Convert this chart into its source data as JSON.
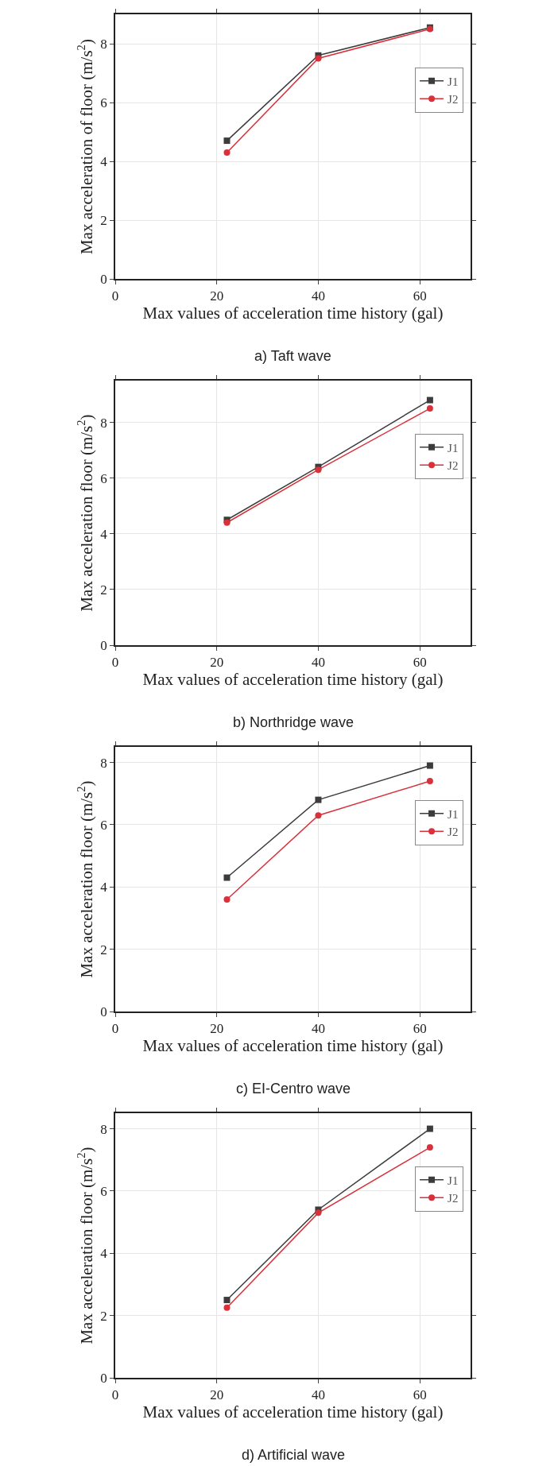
{
  "chart_data": [
    {
      "type": "line",
      "xlabel": "Max values of acceleration time history (gal)",
      "ylabel": "Max acceleration of floor (m/s$^{2}$)",
      "annotations": [
        "a) Taft wave"
      ],
      "x": [
        22,
        40,
        62
      ],
      "xlim": [
        0,
        70
      ],
      "xticks": [
        0,
        20,
        40,
        60
      ],
      "ylim": [
        0,
        9
      ],
      "yticks": [
        0,
        2,
        4,
        6,
        8
      ],
      "grid": true,
      "legend": "top right",
      "line_style": "solid",
      "series": [
        {
          "name": "J1",
          "color": "#3c3c3c",
          "marker": "square",
          "values": [
            4.7,
            7.6,
            8.55
          ]
        },
        {
          "name": "J2",
          "color": "#d9303a",
          "marker": "circle",
          "values": [
            4.3,
            7.5,
            8.5
          ]
        }
      ]
    },
    {
      "type": "line",
      "xlabel": "Max values of acceleration time history (gal)",
      "ylabel": "Max acceleration floor (m/s$^{2}$)",
      "annotations": [
        "b) Northridge wave"
      ],
      "x": [
        22,
        40,
        62
      ],
      "xlim": [
        0,
        70
      ],
      "xticks": [
        0,
        20,
        40,
        60
      ],
      "ylim": [
        0,
        9.5
      ],
      "yticks": [
        0,
        2,
        4,
        6,
        8
      ],
      "grid": true,
      "legend": "top right",
      "line_style": "solid",
      "series": [
        {
          "name": "J1",
          "color": "#3c3c3c",
          "marker": "square",
          "values": [
            4.5,
            6.4,
            8.8
          ]
        },
        {
          "name": "J2",
          "color": "#d9303a",
          "marker": "circle",
          "values": [
            4.4,
            6.3,
            8.5
          ]
        }
      ]
    },
    {
      "type": "line",
      "xlabel": "Max values of acceleration time history (gal)",
      "ylabel": "Max acceleration floor (m/s$^{2}$)",
      "annotations": [
        "c) EI-Centro wave"
      ],
      "x": [
        22,
        40,
        62
      ],
      "xlim": [
        0,
        70
      ],
      "xticks": [
        0,
        20,
        40,
        60
      ],
      "ylim": [
        0,
        8.5
      ],
      "yticks": [
        0,
        2,
        4,
        6,
        8
      ],
      "grid": true,
      "legend": "top right",
      "line_style": "solid",
      "series": [
        {
          "name": "J1",
          "color": "#3c3c3c",
          "marker": "square",
          "values": [
            4.3,
            6.8,
            7.9
          ]
        },
        {
          "name": "J2",
          "color": "#d9303a",
          "marker": "circle",
          "values": [
            3.6,
            6.3,
            7.4
          ]
        }
      ]
    },
    {
      "type": "line",
      "xlabel": "Max values of acceleration time history (gal)",
      "ylabel": "Max acceleration floor (m/s$^{2}$)",
      "annotations": [
        "d) Artificial wave"
      ],
      "x": [
        22,
        40,
        62
      ],
      "xlim": [
        0,
        70
      ],
      "xticks": [
        0,
        20,
        40,
        60
      ],
      "ylim": [
        0,
        8.5
      ],
      "yticks": [
        0,
        2,
        4,
        6,
        8
      ],
      "grid": true,
      "legend": "top right",
      "line_style": "solid",
      "series": [
        {
          "name": "J1",
          "color": "#3c3c3c",
          "marker": "square",
          "values": [
            2.5,
            5.4,
            8.0
          ]
        },
        {
          "name": "J2",
          "color": "#d9303a",
          "marker": "circle",
          "values": [
            2.25,
            5.3,
            7.4
          ]
        }
      ]
    }
  ]
}
